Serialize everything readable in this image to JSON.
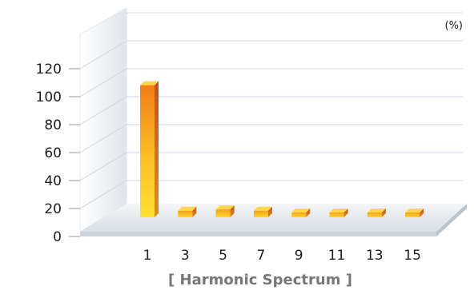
{
  "chart_data": {
    "type": "bar",
    "title": "[ Harmonic Spectrum ]",
    "unit_label": "(%)",
    "xlabel": "",
    "ylabel": "",
    "categories": [
      "1",
      "3",
      "5",
      "7",
      "9",
      "11",
      "13",
      "15"
    ],
    "values": [
      100,
      5,
      6,
      5,
      2,
      2,
      2,
      2
    ],
    "y_ticks": [
      "0",
      "20",
      "40",
      "60",
      "80",
      "100",
      "120"
    ],
    "ylim": [
      0,
      120
    ],
    "grid": true,
    "colors": {
      "main_bar": "#f59a1c",
      "small_bars": "#f7b826",
      "bar_top": "#ffd54a",
      "bar_side": "#d05a14",
      "gridline": "#cfd6dc",
      "wall": "#e4e9ed",
      "floor": "#eaeef1"
    }
  }
}
